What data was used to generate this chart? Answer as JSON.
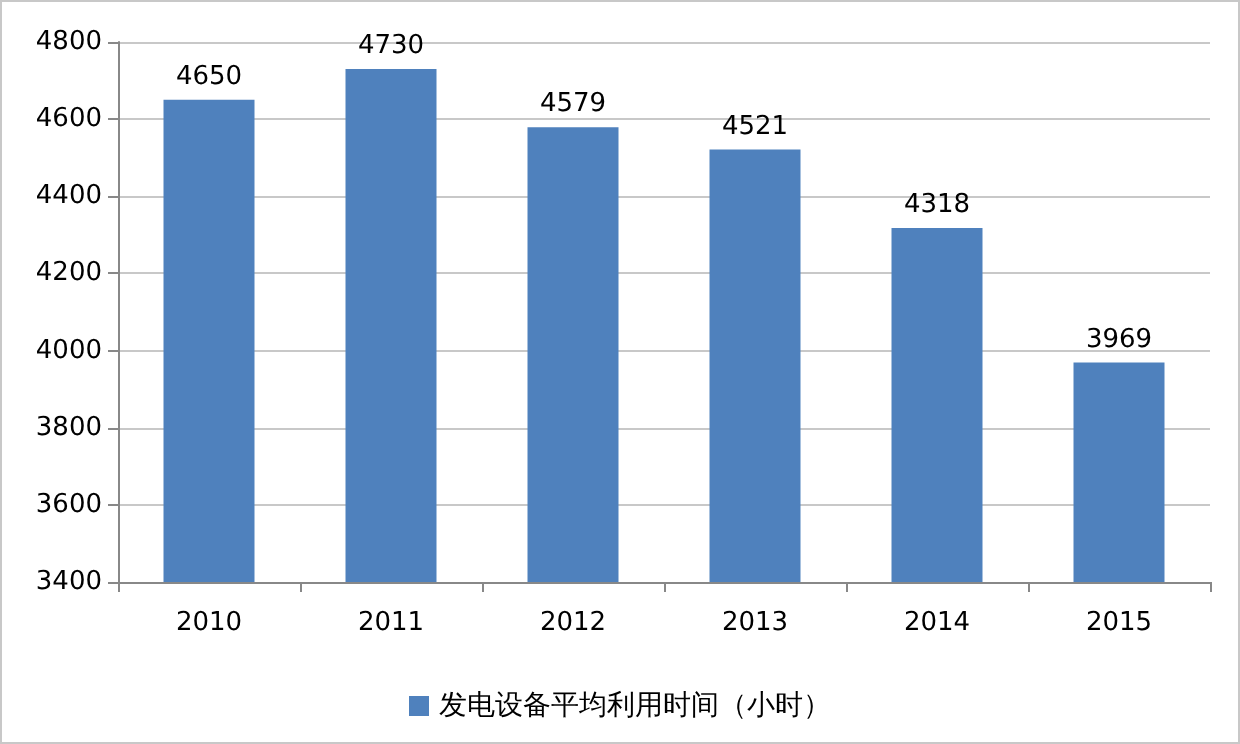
{
  "chart_data": {
    "type": "bar",
    "categories": [
      "2010",
      "2011",
      "2012",
      "2013",
      "2014",
      "2015"
    ],
    "series": [
      {
        "name": "发电设备平均利用时间（小时）",
        "color": "#4f81bd",
        "values": [
          4650,
          4730,
          4579,
          4521,
          4318,
          3969
        ]
      }
    ],
    "ylim": [
      3400,
      4800
    ],
    "yticks": [
      3400,
      3600,
      3800,
      4000,
      4200,
      4400,
      4600,
      4800
    ],
    "grid": "y",
    "legend": "bottom",
    "data_labels": true
  }
}
